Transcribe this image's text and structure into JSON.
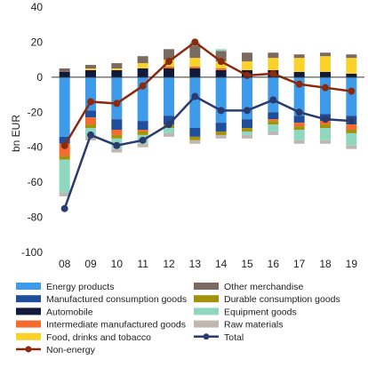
{
  "chart_data": {
    "type": "bar",
    "stacked": true,
    "categories": [
      "08",
      "09",
      "10",
      "11",
      "12",
      "13",
      "14",
      "15",
      "16",
      "17",
      "18",
      "19"
    ],
    "ylabel": "bn EUR",
    "ylim": [
      -100,
      40
    ],
    "yticks": [
      40,
      20,
      0,
      -20,
      -40,
      -60,
      -80,
      -100
    ],
    "grid": false,
    "legend_position": "bottom",
    "series": [
      {
        "name": "Energy products",
        "kind": "bar",
        "color": "#3d9be9",
        "values": [
          -34,
          -19,
          -24,
          -25,
          -22,
          -29,
          -26,
          -24,
          -20,
          -22,
          -21,
          -22
        ]
      },
      {
        "name": "Manufactured consumption goods",
        "kind": "bar",
        "color": "#1f4e9a",
        "values": [
          -4,
          -4,
          -6,
          -5,
          -5,
          -5,
          -5,
          -5,
          -4,
          -4,
          -4,
          -5
        ]
      },
      {
        "name": "Automobile",
        "kind": "bar",
        "color": "#111a3a",
        "values": [
          3,
          4,
          4,
          5,
          5,
          5,
          4,
          4,
          4,
          3,
          3,
          2
        ]
      },
      {
        "name": "Intermediate manufactured goods",
        "kind": "bar",
        "color": "#f46b2d",
        "values": [
          -7,
          -4,
          -3,
          -1,
          1,
          1,
          1,
          0,
          -1,
          -2,
          -2,
          -3
        ]
      },
      {
        "name": "Food, drinks and tobacco",
        "kind": "bar",
        "color": "#fbd229",
        "values": [
          0,
          1,
          1,
          3,
          4,
          5,
          4,
          5,
          7,
          8,
          9,
          9
        ]
      },
      {
        "name": "Other merchandise",
        "kind": "bar",
        "color": "#7a6a60",
        "values": [
          2,
          2,
          3,
          4,
          6,
          7,
          6,
          5,
          3,
          2,
          2,
          2
        ]
      },
      {
        "name": "Durable consumption goods",
        "kind": "bar",
        "color": "#a2920c",
        "values": [
          -2,
          -2,
          -2,
          -2,
          -2,
          -2,
          -2,
          -2,
          -2,
          -2,
          -2,
          -2
        ]
      },
      {
        "name": "Equipment goods",
        "kind": "bar",
        "color": "#8fd8bf",
        "values": [
          -19,
          -5,
          -6,
          -5,
          -3,
          2,
          1,
          -2,
          -4,
          -6,
          -7,
          -7
        ]
      },
      {
        "name": "Raw materials",
        "kind": "bar",
        "color": "#bfb7b0",
        "values": [
          -2,
          -2,
          -2,
          -2,
          -2,
          -2,
          -2,
          -2,
          -2,
          -2,
          -2,
          -2
        ]
      },
      {
        "name": "Total",
        "kind": "line",
        "color": "#2a3b6e",
        "values": [
          -75,
          -33,
          -39,
          -36,
          -27,
          -11,
          -19,
          -19,
          -13,
          -20,
          -24,
          -25
        ]
      },
      {
        "name": "Non-energy",
        "kind": "line",
        "color": "#8b2a0d",
        "values": [
          -39,
          -14,
          -15,
          -5,
          9,
          20,
          9,
          1,
          2,
          -4,
          -6,
          -8
        ]
      }
    ]
  },
  "legend_order": [
    "Energy products",
    "Other merchandise",
    "Manufactured consumption goods",
    "Durable consumption goods",
    "Automobile",
    "Equipment goods",
    "Intermediate manufactured goods",
    "Raw materials",
    "Food, drinks and tobacco",
    "Total",
    "Non-energy"
  ]
}
